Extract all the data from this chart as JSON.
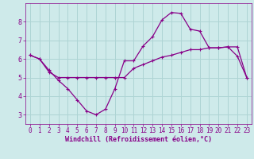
{
  "line1_x": [
    0,
    1,
    2,
    3,
    4,
    5,
    6,
    7,
    8,
    9,
    10,
    11,
    12,
    13,
    14,
    15,
    16,
    17,
    18,
    19,
    20,
    21,
    22,
    23
  ],
  "line1_y": [
    6.2,
    6.0,
    5.4,
    4.85,
    4.4,
    3.8,
    3.2,
    3.0,
    3.3,
    4.4,
    5.9,
    5.9,
    6.7,
    7.2,
    8.1,
    8.5,
    8.45,
    7.6,
    7.5,
    6.6,
    6.6,
    6.65,
    6.15,
    5.0
  ],
  "line2_x": [
    0,
    1,
    2,
    3,
    4,
    5,
    6,
    7,
    8,
    9,
    10,
    11,
    12,
    13,
    14,
    15,
    16,
    17,
    18,
    19,
    20,
    21,
    22,
    23
  ],
  "line2_y": [
    6.2,
    6.0,
    5.3,
    5.0,
    5.0,
    5.0,
    5.0,
    5.0,
    5.0,
    5.0,
    5.0,
    5.5,
    5.7,
    5.9,
    6.1,
    6.2,
    6.35,
    6.5,
    6.5,
    6.6,
    6.6,
    6.65,
    6.65,
    5.0
  ],
  "line_color": "#880088",
  "bg_color": "#ceeaea",
  "grid_color": "#aed4d4",
  "xlabel": "Windchill (Refroidissement éolien,°C)",
  "xlabel_color": "#880088",
  "tick_color": "#880088",
  "ylim": [
    2.5,
    9.0
  ],
  "xlim": [
    -0.5,
    23.5
  ],
  "yticks": [
    3,
    4,
    5,
    6,
    7,
    8
  ],
  "xticks": [
    0,
    1,
    2,
    3,
    4,
    5,
    6,
    7,
    8,
    9,
    10,
    11,
    12,
    13,
    14,
    15,
    16,
    17,
    18,
    19,
    20,
    21,
    22,
    23
  ],
  "tick_fontsize": 5.5,
  "xlabel_fontsize": 6.0,
  "linewidth": 0.9,
  "markersize": 2.5
}
